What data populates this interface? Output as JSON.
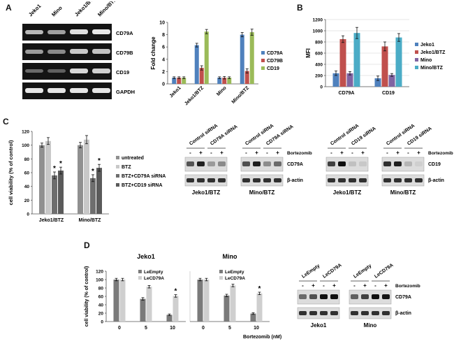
{
  "panels": {
    "A": "A",
    "B": "B",
    "C": "C",
    "D": "D"
  },
  "panel_a_gel": {
    "lanes": [
      "Jeko1",
      "Mino",
      "Jeko1/BTZ",
      "Mino/BTZ"
    ],
    "bands": [
      "CD79A",
      "CD79B",
      "CD19",
      "GAPDH"
    ]
  },
  "chart_data": [
    {
      "id": "fold-change",
      "type": "bar",
      "title": "",
      "xlabel": "",
      "ylabel": "Fold change",
      "ylim": [
        0,
        10
      ],
      "yticks": [
        "0",
        "2",
        "4",
        "6",
        "8",
        "10"
      ],
      "categories": [
        "Jeko1",
        "Jeko1/BTZ",
        "Mino",
        "Mino/BTZ"
      ],
      "series": [
        {
          "name": "CD79A",
          "color": "#4f81bd",
          "values": [
            1.0,
            6.3,
            1.0,
            8.0
          ],
          "errors": [
            0.15,
            0.3,
            0.15,
            0.35
          ]
        },
        {
          "name": "CD79B",
          "color": "#c0504d",
          "values": [
            1.0,
            2.6,
            1.0,
            2.1
          ],
          "errors": [
            0.15,
            0.35,
            0.2,
            0.35
          ]
        },
        {
          "name": "CD19",
          "color": "#9bbb59",
          "values": [
            1.0,
            8.5,
            1.0,
            8.4
          ],
          "errors": [
            0.15,
            0.35,
            0.15,
            0.5
          ]
        }
      ],
      "legend": "right"
    },
    {
      "id": "mfi",
      "type": "bar",
      "title": "",
      "xlabel": "",
      "ylabel": "MFI",
      "ylim": [
        0,
        1200
      ],
      "yticks": [
        "0",
        "200",
        "400",
        "600",
        "800",
        "1000",
        "1200"
      ],
      "categories": [
        "CD79A",
        "CD19"
      ],
      "series": [
        {
          "name": "Jeko1",
          "color": "#4f81bd",
          "values": [
            240,
            150
          ],
          "errors": [
            40,
            40
          ]
        },
        {
          "name": "Jeko1/BTZ",
          "color": "#c0504d",
          "values": [
            850,
            720
          ],
          "errors": [
            60,
            80
          ]
        },
        {
          "name": "Mino",
          "color": "#8064a2",
          "values": [
            240,
            210
          ],
          "errors": [
            30,
            25
          ]
        },
        {
          "name": "Mino/BTZ",
          "color": "#4bacc6",
          "values": [
            960,
            880
          ],
          "errors": [
            100,
            70
          ]
        }
      ],
      "legend": "right"
    },
    {
      "id": "viability-sirna",
      "type": "bar",
      "title": "",
      "xlabel": "",
      "ylabel": "cell viability (% of control)",
      "ylim": [
        0,
        120
      ],
      "yticks": [
        "0",
        "20",
        "40",
        "60",
        "80",
        "100",
        "120"
      ],
      "categories": [
        "Jeko1/BTZ",
        "Mino/BTZ"
      ],
      "series": [
        {
          "name": "untreated",
          "color": "#909090",
          "values": [
            100,
            100
          ],
          "errors": [
            3,
            4
          ]
        },
        {
          "name": "BTZ",
          "color": "#c8c8c8",
          "values": [
            106,
            108
          ],
          "errors": [
            5,
            6
          ]
        },
        {
          "name": "BTZ+CD79A siRNA",
          "color": "#6e6e6e",
          "values": [
            56,
            52
          ],
          "errors": [
            5,
            5
          ]
        },
        {
          "name": "BTZ+CD19 siRNA",
          "color": "#5a5a5a",
          "values": [
            63,
            67
          ],
          "errors": [
            5,
            5
          ]
        }
      ],
      "annotations": [
        "*",
        "*",
        "*",
        "*"
      ],
      "legend": "right"
    },
    {
      "id": "viability-jeko1",
      "type": "bar",
      "title": "Jeko1",
      "xlabel": "",
      "ylabel": "cell viability (% of control)",
      "ylim": [
        0,
        120
      ],
      "yticks": [
        "0",
        "20",
        "40",
        "60",
        "80",
        "100",
        "120"
      ],
      "categories": [
        "0",
        "5",
        "10"
      ],
      "series": [
        {
          "name": "LeEmpty",
          "color": "#7a7a7a",
          "values": [
            100,
            54,
            16
          ],
          "errors": [
            3,
            3,
            2
          ]
        },
        {
          "name": "LeCD79A",
          "color": "#cfcfcf",
          "values": [
            100,
            83,
            61
          ],
          "errors": [
            3,
            3,
            3
          ]
        }
      ],
      "annotations": [
        "*"
      ],
      "legend": "top-right"
    },
    {
      "id": "viability-mino",
      "type": "bar",
      "title": "Mino",
      "xlabel": "Bortezomib (nM)",
      "ylabel": "",
      "ylim": [
        0,
        120
      ],
      "yticks": [],
      "categories": [
        "0",
        "5",
        "10"
      ],
      "series": [
        {
          "name": "LeEmpty",
          "color": "#7a7a7a",
          "values": [
            100,
            62,
            19
          ],
          "errors": [
            3,
            3,
            2
          ]
        },
        {
          "name": "LeCD79A",
          "color": "#cfcfcf",
          "values": [
            100,
            86,
            67
          ],
          "errors": [
            3,
            3,
            3
          ]
        }
      ],
      "annotations": [
        "*"
      ],
      "legend": "top-right"
    }
  ],
  "panel_c_blots": [
    {
      "group": "Jeko1/BTZ",
      "headers": [
        "Control siRNA",
        "CD79A siRNA"
      ],
      "bands": [
        "CD79A",
        "β-actin"
      ],
      "treatment": [
        "-",
        "+",
        "-",
        "+"
      ]
    },
    {
      "group": "Mino/BTZ",
      "headers": [
        "Control siRNA",
        "CD79A siRNA"
      ],
      "bands": [
        "CD79A",
        "β-actin"
      ],
      "treatment": [
        "-",
        "+",
        "-",
        "+"
      ],
      "drug": "Bortezomib"
    },
    {
      "group": "Jeko1/BTZ",
      "headers": [
        "Control siRNA",
        "CD19 siRNA"
      ],
      "bands": [
        "CD19",
        "β-actin"
      ],
      "treatment": [
        "-",
        "+",
        "-",
        "+"
      ]
    },
    {
      "group": "Mino/BTZ",
      "headers": [
        "Control siRNA",
        "CD19 siRNA"
      ],
      "bands": [
        "CD19",
        "β-actin"
      ],
      "treatment": [
        "-",
        "+",
        "-",
        "+"
      ],
      "drug": "Bortezomib"
    }
  ],
  "panel_d_blots": [
    {
      "group": "Jeko1",
      "headers": [
        "LeEmpty",
        "LeCD79A"
      ],
      "treatment": [
        "-",
        "+",
        "-",
        "+"
      ]
    },
    {
      "group": "Mino",
      "headers": [
        "LeEmpty",
        "LeCD79A"
      ],
      "treatment": [
        "-",
        "+",
        "-",
        "+"
      ],
      "drug": "Bortezomib",
      "bands": [
        "CD79A",
        "β-actin"
      ]
    }
  ]
}
